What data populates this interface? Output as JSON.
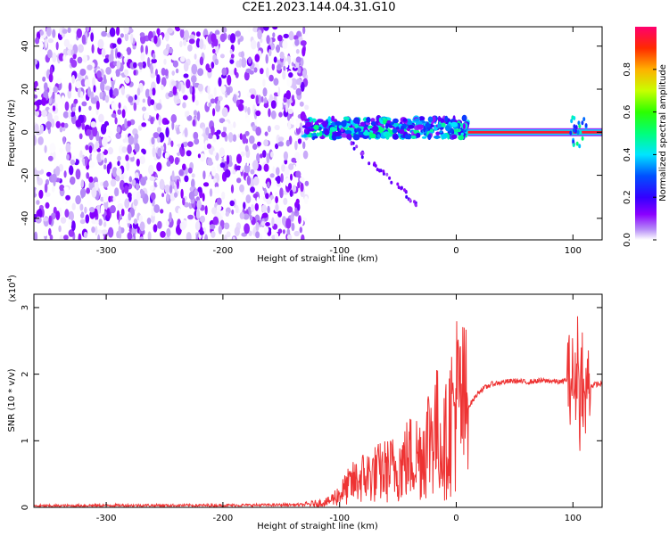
{
  "title": "C2E1.2023.144.04.31.G10",
  "chart_data": [
    {
      "type": "heatmap",
      "xlabel": "Height of straight line (km)",
      "ylabel": "Frequency (Hz)",
      "xlim": [
        -362,
        125
      ],
      "ylim": [
        -50,
        49
      ],
      "xticks": [
        -300,
        -200,
        -100,
        0,
        100
      ],
      "yticks": [
        -40,
        -20,
        0,
        20,
        40
      ],
      "colorbar": {
        "label": "Normalized spectral amplitude",
        "range": [
          0,
          1
        ],
        "ticks": [
          "0.0",
          "0.2",
          "0.4",
          "0.6",
          "0.8"
        ],
        "colormap": [
          "#ffffff",
          "#b58af7",
          "#8a00ff",
          "#3300ff",
          "#0050ff",
          "#00e5ff",
          "#00ff7a",
          "#2cff00",
          "#c8ff00",
          "#ffb000",
          "#ff2a00",
          "#ff006e"
        ]
      },
      "features": [
        {
          "name": "broadband noise",
          "x_range": [
            -362,
            -128
          ],
          "freq_range": [
            -50,
            49
          ],
          "amplitude": 0.15
        },
        {
          "name": "echo band",
          "x_range": [
            -130,
            10
          ],
          "freq_center": 2,
          "amplitude": 0.45
        },
        {
          "name": "sloped trace",
          "x_range": [
            -95,
            -30
          ],
          "freq_range": [
            -3,
            -35
          ],
          "amplitude": 0.2
        },
        {
          "name": "line",
          "x_range": [
            10,
            125
          ],
          "freq_center": 0,
          "amplitude": 0.95
        },
        {
          "name": "spike",
          "x_range": [
            98,
            112
          ],
          "freq_center": 0,
          "amplitude": 0.5
        }
      ]
    },
    {
      "type": "line",
      "xlabel": "Height of straight line (km)",
      "ylabel": "SNR (10 * v/v)",
      "y_multiplier": "(x10",
      "y_multiplier_exp": "4",
      "y_multiplier_close": ")",
      "xlim": [
        -362,
        125
      ],
      "ylim": [
        0,
        3.2
      ],
      "xticks": [
        -300,
        -200,
        -100,
        0,
        100
      ],
      "yticks": [
        0,
        1,
        2,
        3
      ],
      "series": [
        {
          "color": "#ee3333",
          "x": [
            -362,
            -300,
            -200,
            -130,
            -110,
            -100,
            -90,
            -80,
            -70,
            -60,
            -50,
            -40,
            -30,
            -25,
            -20,
            -15,
            -10,
            -5,
            0,
            5,
            10,
            20,
            30,
            40,
            50,
            60,
            70,
            80,
            90,
            95,
            100,
            102,
            104,
            106,
            108,
            110,
            112,
            115,
            120,
            125
          ],
          "y": [
            0.02,
            0.03,
            0.03,
            0.04,
            0.08,
            0.2,
            0.35,
            0.45,
            0.5,
            0.55,
            0.6,
            0.75,
            0.8,
            1.0,
            1.2,
            1.1,
            0.9,
            1.3,
            1.6,
            1.5,
            1.5,
            1.75,
            1.85,
            1.88,
            1.9,
            1.88,
            1.9,
            1.9,
            1.88,
            1.92,
            1.95,
            1.7,
            2.4,
            1.5,
            2.2,
            1.3,
            1.9,
            1.82,
            1.85,
            1.85
          ]
        }
      ]
    }
  ]
}
